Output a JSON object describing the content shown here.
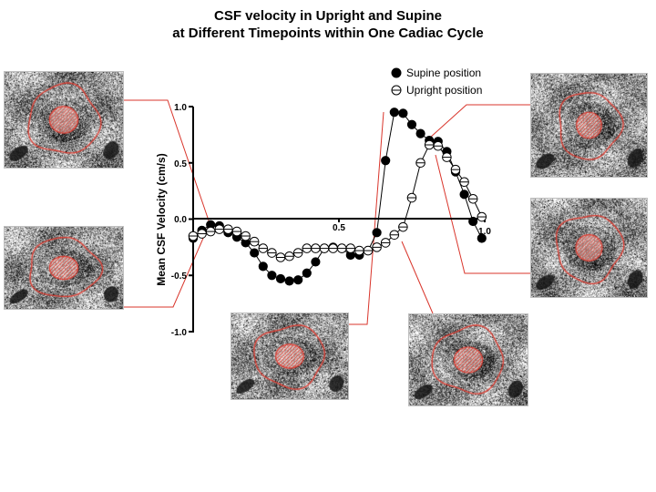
{
  "chart_data": {
    "type": "scatter",
    "title": "CSF velocity in Upright and Supine",
    "subtitle": "at Different Timepoints within One Cadiac Cycle",
    "xlabel": "",
    "ylabel": "Mean CSF Velocity (cm/s)",
    "xlim": [
      0,
      1.0
    ],
    "ylim": [
      -1.0,
      1.0
    ],
    "x_ticks": [
      "0.5",
      "1.0"
    ],
    "y_ticks": [
      "1.0",
      "0.5",
      "0.0",
      "-0.5",
      "-1.0"
    ],
    "legend_position": "top-right",
    "grid": false,
    "series": [
      {
        "name": "Supine position",
        "marker": "filled-circle",
        "x": [
          0.0,
          0.03,
          0.06,
          0.09,
          0.12,
          0.15,
          0.18,
          0.21,
          0.24,
          0.27,
          0.3,
          0.33,
          0.36,
          0.39,
          0.42,
          0.45,
          0.48,
          0.51,
          0.54,
          0.57,
          0.6,
          0.63,
          0.66,
          0.69,
          0.72,
          0.75,
          0.78,
          0.81,
          0.84,
          0.87,
          0.9,
          0.93,
          0.96,
          0.99
        ],
        "values": [
          -0.17,
          -0.1,
          -0.05,
          -0.06,
          -0.12,
          -0.16,
          -0.21,
          -0.3,
          -0.42,
          -0.5,
          -0.53,
          -0.55,
          -0.54,
          -0.48,
          -0.38,
          -0.26,
          -0.25,
          -0.26,
          -0.32,
          -0.32,
          -0.28,
          -0.12,
          0.52,
          0.95,
          0.94,
          0.84,
          0.76,
          0.7,
          0.69,
          0.6,
          0.42,
          0.22,
          -0.02,
          -0.17
        ]
      },
      {
        "name": "Upright position",
        "marker": "open-circle-slash",
        "x": [
          0.0,
          0.03,
          0.06,
          0.09,
          0.12,
          0.15,
          0.18,
          0.21,
          0.24,
          0.27,
          0.3,
          0.33,
          0.36,
          0.39,
          0.42,
          0.45,
          0.48,
          0.51,
          0.54,
          0.57,
          0.6,
          0.63,
          0.66,
          0.69,
          0.72,
          0.75,
          0.78,
          0.81,
          0.84,
          0.87,
          0.9,
          0.93,
          0.96,
          0.99
        ],
        "values": [
          -0.15,
          -0.13,
          -0.11,
          -0.09,
          -0.09,
          -0.11,
          -0.15,
          -0.2,
          -0.26,
          -0.3,
          -0.34,
          -0.33,
          -0.3,
          -0.26,
          -0.26,
          -0.26,
          -0.26,
          -0.26,
          -0.26,
          -0.28,
          -0.28,
          -0.25,
          -0.21,
          -0.14,
          -0.07,
          0.19,
          0.5,
          0.66,
          0.65,
          0.55,
          0.44,
          0.33,
          0.18,
          0.02
        ]
      }
    ]
  },
  "colors": {
    "connector": "#d9352b",
    "roi": "#e03a2f",
    "axis": "#000000"
  },
  "images": [
    {
      "name": "mri-upright-early",
      "roi_scale": 1.0
    },
    {
      "name": "mri-supine-early",
      "roi_scale": 1.0
    },
    {
      "name": "mri-supine-peak",
      "roi_scale": 0.9
    },
    {
      "name": "mri-upright-peak",
      "roi_scale": 0.95
    },
    {
      "name": "mri-supine-trough",
      "roi_scale": 1.0
    },
    {
      "name": "mri-upright-rise",
      "roi_scale": 1.0
    }
  ]
}
